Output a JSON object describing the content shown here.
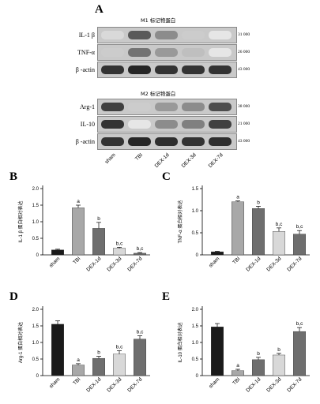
{
  "panels": {
    "A": "A",
    "B": "B",
    "C": "C",
    "D": "D",
    "E": "E"
  },
  "blot": {
    "m1_title": "M1 标记物蛋白",
    "m2_title": "M2 标记物蛋白",
    "lanes": [
      "sham",
      "TBI",
      "DEX-1d",
      "DEX-3d",
      "DEX-7d"
    ],
    "m1_rows": [
      {
        "label": "IL-1 β",
        "mw": "31 000"
      },
      {
        "label": "TNF-α",
        "mw": "26 000"
      },
      {
        "label": "β -actin",
        "mw": "43 000"
      }
    ],
    "m2_rows": [
      {
        "label": "Arg-1",
        "mw": "38 000"
      },
      {
        "label": "IL-10",
        "mw": "21 000"
      },
      {
        "label": "β -actin",
        "mw": "43 000"
      }
    ]
  },
  "chart_data": [
    {
      "panel": "B",
      "type": "bar",
      "ylabel": "IL-1 β 蛋白相对表达",
      "categories": [
        "sham",
        "TBI",
        "DEX-1d",
        "DEX-3d",
        "DEX-7d"
      ],
      "values": [
        0.15,
        1.42,
        0.8,
        0.2,
        0.05
      ],
      "errors": [
        0.02,
        0.08,
        0.18,
        0.03,
        0.02
      ],
      "sig": [
        "",
        "a",
        "b",
        "b,c",
        "b,c"
      ],
      "ylim": [
        0,
        2.0
      ],
      "yticks": [
        0,
        0.5,
        1.0,
        1.5,
        2.0
      ],
      "ytick_labels": [
        "0",
        "0.5",
        "1.0",
        "1.5",
        "2.0"
      ],
      "colors": [
        "#1a1a1a",
        "#a8a8a8",
        "#6e6e6e",
        "#d8d8d8",
        "#6e6e6e"
      ]
    },
    {
      "panel": "C",
      "type": "bar",
      "ylabel": "TNF-α 蛋白相对表达",
      "categories": [
        "sham",
        "TBI",
        "DEX-1d",
        "DEX-3d",
        "DEX-7d"
      ],
      "values": [
        0.07,
        1.2,
        1.05,
        0.53,
        0.47
      ],
      "errors": [
        0.01,
        0.02,
        0.05,
        0.08,
        0.08
      ],
      "sig": [
        "",
        "a",
        "b",
        "b,c",
        "b,c"
      ],
      "ylim": [
        0,
        1.5
      ],
      "yticks": [
        0,
        0.5,
        1.0,
        1.5
      ],
      "ytick_labels": [
        "0",
        "0.5",
        "1.0",
        "1.5"
      ],
      "colors": [
        "#1a1a1a",
        "#a8a8a8",
        "#6e6e6e",
        "#d8d8d8",
        "#6e6e6e"
      ]
    },
    {
      "panel": "D",
      "type": "bar",
      "ylabel": "Arg-1 蛋白相对表达",
      "categories": [
        "sham",
        "TBI",
        "DEX-1d",
        "DEX-3d",
        "DEX-7d"
      ],
      "values": [
        1.55,
        0.32,
        0.52,
        0.65,
        1.1
      ],
      "errors": [
        0.1,
        0.04,
        0.06,
        0.1,
        0.1
      ],
      "sig": [
        "",
        "a",
        "b",
        "b,c",
        "b,c"
      ],
      "ylim": [
        0,
        2.0
      ],
      "yticks": [
        0,
        0.5,
        1.0,
        1.5,
        2.0
      ],
      "ytick_labels": [
        "0",
        "0.5",
        "1.0",
        "1.5",
        "2.0"
      ],
      "colors": [
        "#1a1a1a",
        "#a8a8a8",
        "#6e6e6e",
        "#d8d8d8",
        "#6e6e6e"
      ]
    },
    {
      "panel": "E",
      "type": "bar",
      "ylabel": "IL-10 蛋白相对表达",
      "categories": [
        "sham",
        "TBI",
        "DEX-1d",
        "DEX-3d",
        "DEX-7d"
      ],
      "values": [
        1.47,
        0.15,
        0.48,
        0.62,
        1.33
      ],
      "errors": [
        0.1,
        0.04,
        0.07,
        0.05,
        0.12
      ],
      "sig": [
        "",
        "a",
        "b",
        "b",
        "b,c"
      ],
      "ylim": [
        0,
        2.0
      ],
      "yticks": [
        0,
        0.5,
        1.0,
        1.5,
        2.0
      ],
      "ytick_labels": [
        "0",
        "0.5",
        "1.0",
        "1.5",
        "2.0"
      ],
      "colors": [
        "#1a1a1a",
        "#a8a8a8",
        "#6e6e6e",
        "#d8d8d8",
        "#6e6e6e"
      ]
    }
  ]
}
